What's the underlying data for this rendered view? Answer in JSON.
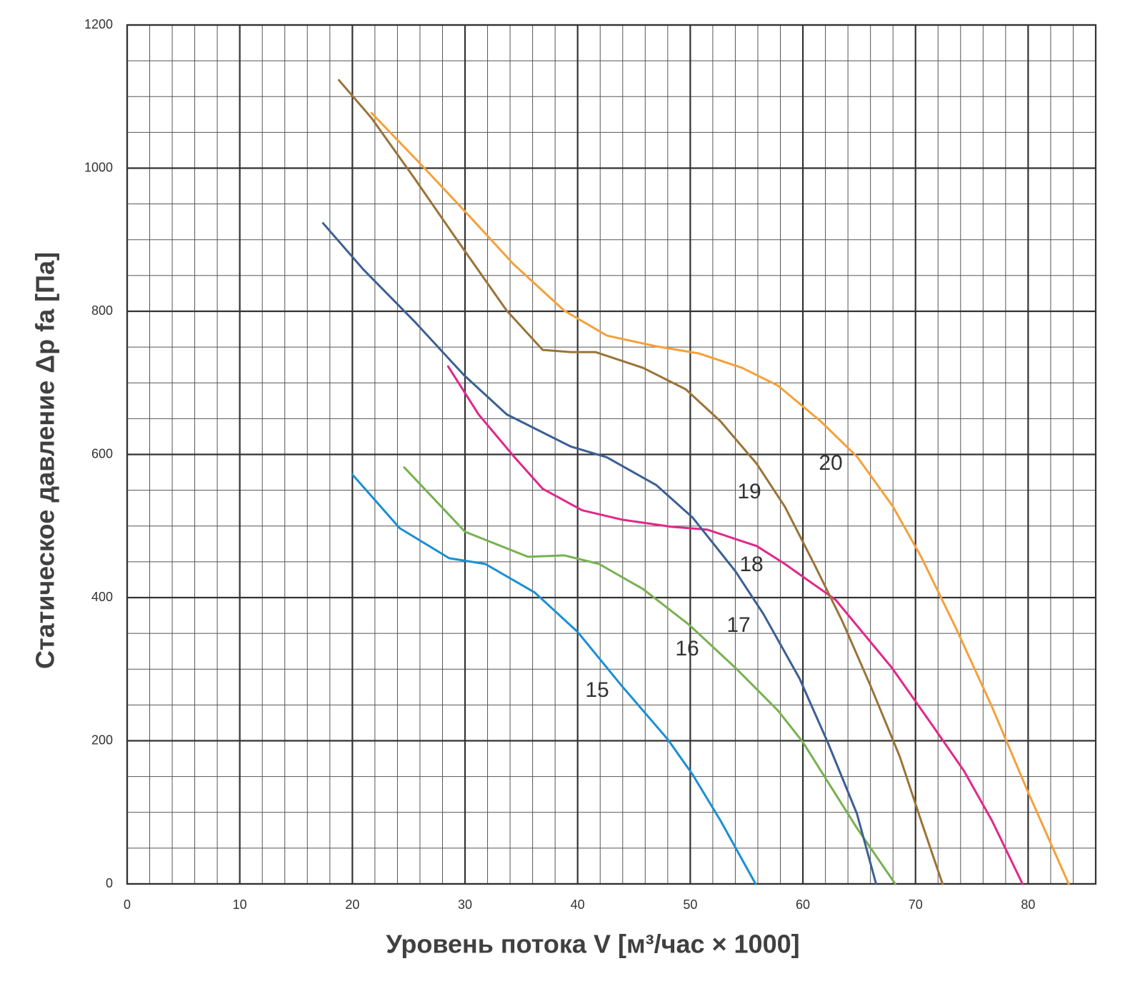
{
  "chart_data": {
    "type": "line",
    "xlabel": "Уровень потока V [м³/час × 1000]",
    "ylabel": "Статическое давление Δp fa [Па]",
    "xlim": [
      0,
      86
    ],
    "ylim": [
      0,
      1200
    ],
    "xticks": [
      0,
      10,
      20,
      30,
      40,
      50,
      60,
      70,
      80
    ],
    "yticks": [
      0,
      200,
      400,
      600,
      800,
      1000,
      1200
    ],
    "grid": true,
    "series": [
      {
        "name": "15",
        "color": "#1a8fd4",
        "x": [
          20,
          24.2,
          28.6,
          31.8,
          36.2,
          40,
          43.9,
          48,
          50.2,
          52.7,
          55.8
        ],
        "values": [
          572,
          497,
          455,
          447,
          407,
          352,
          277,
          202,
          153,
          88,
          0
        ]
      },
      {
        "name": "16",
        "color": "#77b150",
        "x": [
          24.6,
          30,
          35.6,
          38.8,
          41.9,
          45.8,
          49.9,
          54,
          57.8,
          60,
          62.2,
          64.8,
          68.2
        ],
        "values": [
          582,
          492,
          457,
          459,
          447,
          412,
          362,
          302,
          242,
          198,
          143,
          78,
          0
        ]
      },
      {
        "name": "17",
        "color": "#e0288a",
        "x": [
          28.5,
          31.2,
          34.4,
          36.9,
          40.4,
          43.9,
          48.3,
          51.5,
          55.9,
          58.4,
          62.9,
          67.9,
          71.7,
          74.3,
          76.8,
          79.5
        ],
        "values": [
          723,
          656,
          596,
          552,
          522,
          509,
          499,
          495,
          472,
          447,
          397,
          302,
          217,
          158,
          88,
          0
        ]
      },
      {
        "name": "18",
        "color": "#3c5f94",
        "x": [
          17.4,
          21,
          25.5,
          29.9,
          33.7,
          39.4,
          42.6,
          47,
          50.2,
          54,
          56.5,
          59.7,
          62.2,
          64.8,
          66.5
        ],
        "values": [
          923,
          858,
          786,
          711,
          656,
          611,
          596,
          557,
          512,
          437,
          377,
          287,
          198,
          98,
          0
        ]
      },
      {
        "name": "19",
        "color": "#9b7337",
        "x": [
          18.8,
          21.7,
          25.5,
          29.9,
          33.7,
          36.9,
          39.4,
          41.6,
          45.8,
          49.6,
          52.7,
          55.9,
          58.4,
          61,
          63.5,
          66,
          68.6,
          70.5,
          72.4
        ],
        "values": [
          1123,
          1070,
          986,
          886,
          801,
          746,
          743,
          743,
          721,
          691,
          646,
          587,
          527,
          447,
          367,
          277,
          178,
          88,
          0
        ]
      },
      {
        "name": "20",
        "color": "#f5a03a",
        "x": [
          21.7,
          26.1,
          30.5,
          34.3,
          38.8,
          42.6,
          47,
          50.8,
          54.6,
          57.8,
          61.6,
          64.8,
          68,
          70.5,
          73.6,
          76.8,
          80,
          83.6
        ],
        "values": [
          1077,
          1005,
          931,
          866,
          801,
          766,
          751,
          741,
          721,
          696,
          646,
          597,
          527,
          457,
          357,
          247,
          128,
          0
        ]
      }
    ]
  }
}
